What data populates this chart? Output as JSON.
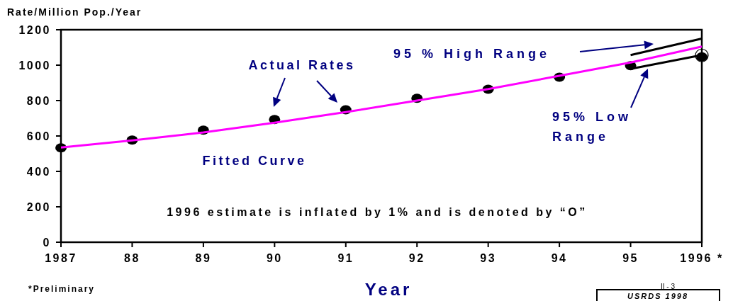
{
  "chart_data": {
    "type": "scatter",
    "ylabel": "Rate/Million Pop./Year",
    "xlabel": "Year",
    "x": [
      1987,
      1988,
      1989,
      1990,
      1991,
      1992,
      1993,
      1994,
      1995,
      1996
    ],
    "xlim": [
      1987,
      1996
    ],
    "xticks": [
      1987,
      {
        "value": 1988,
        "label": "88"
      },
      {
        "value": 1989,
        "label": "89"
      },
      {
        "value": 1990,
        "label": "90"
      },
      {
        "value": 1991,
        "label": "91"
      },
      {
        "value": 1992,
        "label": "92"
      },
      {
        "value": 1993,
        "label": "93"
      },
      {
        "value": 1994,
        "label": "94"
      },
      {
        "value": 1995,
        "label": "95"
      },
      {
        "value": 1996,
        "label": "1996 *"
      }
    ],
    "ylim": [
      0,
      1200
    ],
    "yticks": [
      0,
      200,
      400,
      600,
      800,
      1000,
      1200
    ],
    "grid": false,
    "series": [
      {
        "type": "line",
        "color": "#ff00ff",
        "values": [
          535,
          575,
          620,
          675,
          735,
          800,
          865,
          940,
          1015,
          1105
        ]
      },
      {
        "color": "#000000",
        "values": [
          533,
          577,
          633,
          693,
          748,
          813,
          864,
          932,
          997,
          1047
        ]
      },
      {
        "type": "line",
        "color": "#000000",
        "values": [
          null,
          null,
          null,
          null,
          null,
          null,
          null,
          null,
          1057,
          1150
        ]
      },
      {
        "type": "line",
        "color": "#000000",
        "values": [
          null,
          null,
          null,
          null,
          null,
          null,
          null,
          null,
          979,
          1057
        ]
      }
    ],
    "annotations": [
      "Actual Rates",
      "Fitted Curve",
      "95 % High Range",
      "95% Low Range",
      "1996 estimate is inflated by 1% and is denoted by “O”",
      "*Preliminary",
      "II - 3",
      "USRDS 1998"
    ]
  }
}
